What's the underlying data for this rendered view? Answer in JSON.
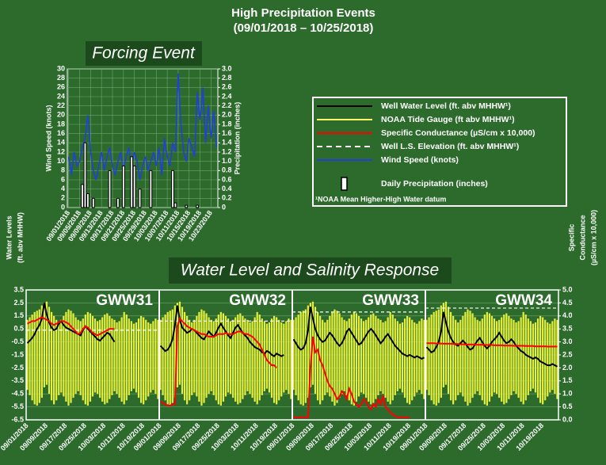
{
  "title": "High Precipitation Events",
  "subtitle": "(09/01/2018 – 10/25/2018)",
  "legend": [
    {
      "name": "Well Water Level (ft. abv MHHW¹)",
      "color": "#000000",
      "style": "line"
    },
    {
      "name": "NOAA  Tide Gauge (ft abv MHHW¹)",
      "color": "#ffff66",
      "style": "line"
    },
    {
      "name": "Specific Conductance (µS/cm x 10,000)",
      "color": "#ff0000",
      "style": "line"
    },
    {
      "name": "Well L.S. Elevation (ft. abv MHHW¹)",
      "color": "#ffffff",
      "style": "dashed"
    },
    {
      "name": "Wind Speed (knots)",
      "color": "#1f3fe0",
      "style": "line"
    },
    {
      "name": "Daily Precipitation (inches)",
      "color": "#ffffff",
      "style": "bar"
    }
  ],
  "footnote": "¹NOAA  Mean Higher-High  Water datum",
  "chart_data": [
    {
      "type": "bar-line",
      "title": "Forcing Event",
      "ylabel": "Wind Speed (knots)",
      "y2label": "Precipitation (inches)",
      "categories": [
        "09/01/2018",
        null,
        null,
        null,
        "09/05/2018",
        null,
        null,
        null,
        "09/09/2018",
        null,
        null,
        null,
        "09/13/2018",
        null,
        null,
        null,
        "09/17/2018",
        null,
        null,
        null,
        "09/21/2018",
        null,
        null,
        null,
        "09/25/2018",
        null,
        null,
        null,
        "09/29/2018",
        null,
        null,
        null,
        "10/03/2018",
        null,
        null,
        null,
        "10/07/2018",
        null,
        null,
        null,
        "10/11/2018",
        null,
        null,
        null,
        "10/15/2018",
        null,
        null,
        null,
        "10/19/2018",
        null,
        null,
        null,
        "10/23/2018",
        null,
        null
      ],
      "series": [
        {
          "color": "#1f3fe0",
          "values": [
            11,
            7,
            12,
            9,
            10,
            13,
            15,
            20,
            12,
            8,
            6,
            9,
            12,
            8,
            11,
            13,
            9,
            7,
            10,
            12,
            8,
            11,
            13,
            9,
            12,
            10,
            6,
            9,
            11,
            8,
            10,
            12,
            9,
            13,
            7,
            15,
            11,
            9,
            14,
            12,
            29,
            18,
            12,
            10,
            15,
            13,
            11,
            25,
            19,
            26,
            14,
            22,
            15,
            21,
            13
          ]
        },
        {
          "type": "bar",
          "axis": "y2",
          "color": "#ffffff",
          "values": [
            0,
            0,
            0,
            0,
            0,
            0.5,
            1.4,
            0.3,
            0,
            0.2,
            0,
            0,
            0,
            0,
            0,
            0.8,
            0,
            0,
            0.2,
            0,
            0.9,
            0,
            0,
            1.1,
            0.9,
            0,
            0.4,
            0,
            0,
            0,
            0.8,
            0,
            0,
            0,
            0,
            0,
            0,
            0,
            0.8,
            0.1,
            0,
            0,
            0,
            0.05,
            0,
            0,
            0,
            0.05,
            0,
            0,
            0,
            0,
            0,
            0,
            0
          ]
        }
      ],
      "ylim": [
        0,
        30
      ],
      "yticks": [
        0,
        2,
        4,
        6,
        8,
        10,
        12,
        14,
        16,
        18,
        20,
        22,
        24,
        26,
        28,
        30
      ],
      "y2lim": [
        0,
        3
      ],
      "y2ticks": [
        0,
        0.2,
        0.4,
        0.6,
        0.8,
        {
          "value": 1,
          "label": "1.0"
        },
        1.2,
        1.4,
        1.6,
        1.8,
        {
          "value": 2,
          "label": "2.0"
        },
        2.2,
        2.4,
        2.6,
        2.8,
        {
          "value": 3,
          "label": "3.0"
        }
      ],
      "grid": true
    },
    {
      "type": "panels",
      "title": "Water Level and Salinity Response",
      "ylabel": [
        "Water Levels",
        "(ft. abv MHHW)"
      ],
      "y2label": [
        "Specific",
        "Conductance",
        "(µS/cm x 10,000)"
      ],
      "categories": [
        "09/01/2018",
        null,
        null,
        null,
        null,
        null,
        null,
        null,
        "09/09/2018",
        null,
        null,
        null,
        null,
        null,
        null,
        null,
        "09/17/2018",
        null,
        null,
        null,
        null,
        null,
        null,
        null,
        "09/25/2018",
        null,
        null,
        null,
        null,
        null,
        null,
        null,
        "10/03/2018",
        null,
        null,
        null,
        null,
        null,
        null,
        null,
        "10/11/2018",
        null,
        null,
        null,
        null,
        null,
        null,
        null,
        "10/19/2018",
        null,
        null,
        null,
        null,
        null,
        null
      ],
      "ylim": [
        -6.5,
        3.5
      ],
      "yticks": [
        -6.5,
        -5.5,
        -4.5,
        -3.5,
        -2.5,
        -1.5,
        -0.5,
        0.5,
        1.5,
        2.5,
        3.5
      ],
      "y2lim": [
        0,
        5
      ],
      "y2ticks": [
        {
          "value": 0,
          "label": "0.0"
        },
        0.5,
        {
          "value": 1,
          "label": "1.0"
        },
        1.5,
        {
          "value": 2,
          "label": "2.0"
        },
        2.5,
        {
          "value": 3,
          "label": "3.0"
        },
        3.5,
        {
          "value": 4,
          "label": "4.0"
        },
        4.5,
        {
          "value": 5,
          "label": "5.0"
        }
      ],
      "grid": true,
      "tide": {
        "color": "#e6f03c",
        "highs": [
          1.2,
          1.4,
          1.6,
          1.8,
          1.9,
          2.0,
          2.3,
          2.5,
          2.6,
          2.2,
          1.8,
          1.5,
          1.2,
          1.0,
          1.2,
          1.5,
          1.8,
          2.0,
          1.9,
          1.7,
          1.4,
          1.2,
          1.1,
          1.3,
          1.6,
          1.8,
          1.7,
          1.5,
          1.3,
          1.1,
          1.2,
          1.4,
          1.6,
          1.7,
          1.5,
          1.3,
          1.2,
          1.0,
          1.1,
          1.4,
          1.8,
          1.6,
          1.3,
          1.1,
          0.9,
          1.0,
          1.3,
          1.5,
          1.4,
          1.2,
          1.0,
          0.9,
          1.1,
          1.3,
          1.2
        ],
        "lows": [
          -4.2,
          -4.6,
          -5.0,
          -5.3,
          -5.4,
          -5.2,
          -4.8,
          -4.0,
          -3.8,
          -4.5,
          -5.0,
          -5.3,
          -5.0,
          -4.6,
          -4.4,
          -4.7,
          -5.1,
          -5.4,
          -5.2,
          -4.8,
          -4.5,
          -4.3,
          -4.6,
          -5.0,
          -5.3,
          -5.4,
          -5.1,
          -4.7,
          -4.4,
          -4.5,
          -4.8,
          -5.1,
          -5.3,
          -5.2,
          -4.9,
          -4.6,
          -4.3,
          -4.5,
          -4.8,
          -5.1,
          -5.3,
          -5.0,
          -4.6,
          -4.3,
          -4.1,
          -4.4,
          -4.8,
          -5.2,
          -5.3,
          -5.0,
          -4.7,
          -4.4,
          -4.2,
          -4.5,
          -4.9
        ]
      },
      "panels": [
        {
          "title": "GWW31",
          "ls_elevation": 0.4,
          "series": [
            {
              "color": "#000000",
              "values": [
                -0.6,
                -0.4,
                -0.2,
                0.1,
                0.5,
                0.8,
                1.3,
                2.5,
                1.6,
                1.0,
                0.6,
                0.4,
                0.5,
                0.9,
                1.1,
                0.8,
                0.6,
                0.5,
                0.4,
                0.3,
                0.2,
                0.1,
                0.0,
                0.4,
                0.7,
                0.5,
                0.3,
                0.1,
                -0.1,
                -0.3,
                -0.4,
                -0.2,
                0.0,
                0.2,
                0.1,
                -0.2,
                -0.5,
                null,
                null,
                null,
                null,
                null,
                null,
                null,
                null,
                null,
                null,
                null,
                null,
                null,
                null,
                null,
                null,
                null,
                null
              ]
            },
            {
              "color": "#ff0000",
              "axis": "y2",
              "values": [
                3.7,
                3.75,
                3.8,
                3.8,
                3.85,
                3.9,
                3.95,
                3.9,
                3.85,
                3.8,
                3.7,
                3.65,
                3.7,
                3.75,
                3.8,
                3.8,
                3.75,
                3.7,
                3.6,
                3.5,
                3.4,
                3.3,
                3.35,
                3.5,
                3.6,
                3.55,
                3.45,
                3.35,
                3.3,
                3.25,
                3.3,
                3.35,
                3.4,
                3.45,
                3.5,
                3.5,
                3.5,
                null,
                null,
                null,
                null,
                null,
                null,
                null,
                null,
                null,
                null,
                null,
                null,
                null,
                null,
                null,
                null,
                null,
                null
              ]
            }
          ]
        },
        {
          "title": "GWW32",
          "ls_elevation": 1.1,
          "series": [
            {
              "color": "#000000",
              "values": [
                -0.8,
                -1.0,
                -1.2,
                -1.1,
                -0.8,
                -0.3,
                0.8,
                2.3,
                1.2,
                0.6,
                0.4,
                0.2,
                0.3,
                0.5,
                0.4,
                0.2,
                0.0,
                -0.2,
                -0.3,
                0.0,
                0.3,
                0.1,
                -0.1,
                0.2,
                0.6,
                0.9,
                0.6,
                0.3,
                0.0,
                -0.2,
                0.2,
                0.6,
                0.8,
                0.5,
                0.2,
                0.0,
                -0.2,
                -0.5,
                -0.7,
                -0.9,
                -1.0,
                -1.1,
                -1.3,
                -1.4,
                -1.2,
                -1.3,
                -1.5,
                -1.6,
                -1.4,
                -1.5,
                -1.6,
                -1.5,
                null,
                null,
                null
              ]
            },
            {
              "color": "#ff0000",
              "axis": "y2",
              "values": [
                0.7,
                0.65,
                0.6,
                0.55,
                0.55,
                0.6,
                0.6,
                3.6,
                3.9,
                3.8,
                3.7,
                3.6,
                3.55,
                3.5,
                3.45,
                3.4,
                3.35,
                3.3,
                3.3,
                3.25,
                3.2,
                3.2,
                3.2,
                3.25,
                3.3,
                3.3,
                3.3,
                3.35,
                3.3,
                3.3,
                3.3,
                3.35,
                3.4,
                3.4,
                3.35,
                3.3,
                3.3,
                3.25,
                3.2,
                3.1,
                3.0,
                2.9,
                2.7,
                2.5,
                2.3,
                2.2,
                2.1,
                2.1,
                2.0,
                null,
                null,
                null,
                null,
                null,
                null
              ]
            }
          ]
        },
        {
          "title": "GWW33",
          "ls_elevation": 1.8,
          "series": [
            {
              "color": "#000000",
              "values": [
                -0.3,
                -0.6,
                -0.9,
                -1.1,
                -1.0,
                -0.6,
                0.4,
                2.2,
                1.3,
                0.5,
                0.0,
                -0.3,
                -0.5,
                -0.4,
                -0.1,
                0.2,
                0.0,
                -0.3,
                -0.6,
                -0.8,
                -0.6,
                -0.2,
                0.3,
                0.5,
                0.2,
                -0.1,
                -0.4,
                -0.7,
                -0.6,
                -0.3,
                0.0,
                0.3,
                0.5,
                0.3,
                0.0,
                -0.3,
                -0.6,
                -0.4,
                -0.1,
                0.1,
                -0.2,
                -0.5,
                -0.8,
                -1.0,
                -1.2,
                -1.4,
                -1.5,
                -1.6,
                -1.5,
                -1.6,
                -1.7,
                -1.6,
                -1.7,
                -1.8,
                -1.7
              ]
            },
            {
              "color": "#ff0000",
              "axis": "y2",
              "values": [
                0.1,
                0.1,
                0.1,
                0.1,
                0.1,
                0.1,
                0.1,
                2.0,
                3.2,
                2.6,
                2.7,
                2.3,
                2.1,
                1.8,
                1.5,
                1.3,
                1.2,
                1.0,
                0.8,
                0.9,
                1.1,
                1.0,
                0.8,
                1.2,
                1.0,
                0.7,
                0.6,
                0.5,
                0.6,
                0.8,
                0.7,
                0.5,
                0.4,
                0.6,
                0.5,
                0.8,
                0.6,
                0.9,
                0.5,
                0.4,
                0.3,
                0.2,
                0.15,
                0.1,
                0.1,
                0.1,
                0.1,
                0.1,
                0.1,
                null,
                null,
                null,
                null,
                null,
                null
              ]
            }
          ]
        },
        {
          "title": "GWW34",
          "ls_elevation": 2.1,
          "series": [
            {
              "color": "#000000",
              "values": [
                -0.9,
                -1.1,
                -1.3,
                -1.2,
                -0.9,
                -0.5,
                0.3,
                1.8,
                1.0,
                0.3,
                -0.2,
                -0.5,
                -0.7,
                -0.8,
                -0.6,
                -0.4,
                -0.6,
                -0.9,
                -1.1,
                -1.0,
                -0.7,
                -0.4,
                -0.2,
                -0.5,
                -0.8,
                -1.0,
                -0.8,
                -0.5,
                -0.3,
                -0.1,
                0.2,
                -0.1,
                -0.4,
                -0.6,
                -0.5,
                -0.3,
                -0.5,
                -0.8,
                -1.0,
                -1.2,
                -1.3,
                -1.5,
                -1.6,
                -1.7,
                -1.8,
                -1.7,
                -1.8,
                -2.0,
                -2.1,
                -2.2,
                -2.3,
                -2.3,
                -2.2,
                -2.3,
                -2.4
              ]
            },
            {
              "color": "#ff0000",
              "axis": "y2",
              "values": [
                2.95,
                2.95,
                2.95,
                2.95,
                2.94,
                2.94,
                2.94,
                2.93,
                2.93,
                2.93,
                2.93,
                2.92,
                2.92,
                2.92,
                2.91,
                2.91,
                2.91,
                2.9,
                2.9,
                2.9,
                2.9,
                2.89,
                2.89,
                2.89,
                2.88,
                2.88,
                2.88,
                2.88,
                2.87,
                2.87,
                2.87,
                2.87,
                2.86,
                2.86,
                2.86,
                2.86,
                2.85,
                2.85,
                2.85,
                2.85,
                2.85,
                2.84,
                2.84,
                2.84,
                2.84,
                2.83,
                2.83,
                2.83,
                2.83,
                2.83,
                2.82,
                2.82,
                2.82,
                2.82,
                2.82
              ]
            }
          ]
        }
      ]
    }
  ]
}
